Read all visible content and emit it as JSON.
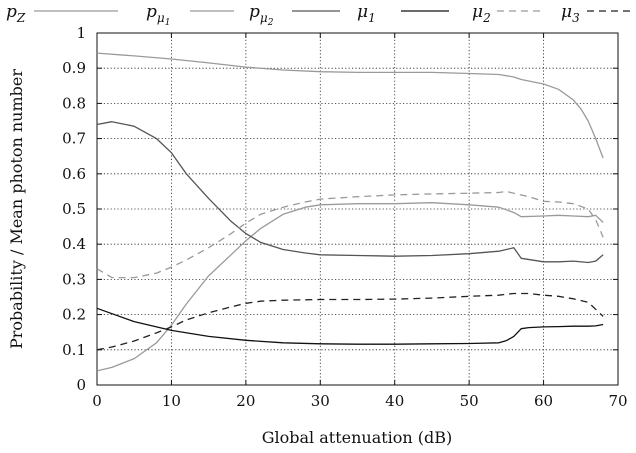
{
  "chart_data": {
    "type": "line",
    "xlabel": "Global attenuation (dB)",
    "ylabel": "Probability / Mean photon number",
    "xlim": [
      0,
      70
    ],
    "ylim": [
      0,
      1
    ],
    "xticks": [
      "0",
      "10",
      "20",
      "30",
      "40",
      "50",
      "60",
      "70"
    ],
    "yticks": [
      "0",
      "0.1",
      "0.2",
      "0.3",
      "0.4",
      "0.5",
      "0.6",
      "0.7",
      "0.8",
      "0.9",
      "1"
    ],
    "grid": true,
    "legend_position": "top",
    "series": [
      {
        "name": "p",
        "sub": "Z",
        "subsub": "",
        "color": "#9a9a9a",
        "dash": "",
        "x": [
          0,
          5,
          10,
          15,
          20,
          25,
          30,
          35,
          40,
          45,
          50,
          54,
          56,
          57,
          60,
          62,
          64,
          65,
          66,
          67,
          68
        ],
        "y": [
          0.943,
          0.935,
          0.926,
          0.915,
          0.903,
          0.895,
          0.89,
          0.888,
          0.888,
          0.888,
          0.885,
          0.882,
          0.875,
          0.868,
          0.855,
          0.84,
          0.81,
          0.785,
          0.75,
          0.7,
          0.645
        ]
      },
      {
        "name": "p",
        "sub": "μ",
        "subsub": "1",
        "color": "#9a9a9a",
        "dash": "",
        "x": [
          0,
          2,
          5,
          8,
          10,
          12,
          15,
          18,
          20,
          22,
          25,
          28,
          30,
          35,
          40,
          45,
          50,
          54,
          56,
          57,
          60,
          62,
          64,
          66,
          67,
          68
        ],
        "y": [
          0.04,
          0.05,
          0.075,
          0.12,
          0.17,
          0.23,
          0.31,
          0.37,
          0.41,
          0.445,
          0.485,
          0.505,
          0.512,
          0.515,
          0.515,
          0.518,
          0.512,
          0.505,
          0.49,
          0.478,
          0.48,
          0.482,
          0.48,
          0.478,
          0.482,
          0.462
        ]
      },
      {
        "name": "p",
        "sub": "μ",
        "subsub": "2",
        "color": "#555555",
        "dash": "",
        "x": [
          0,
          2,
          5,
          8,
          10,
          12,
          15,
          18,
          20,
          22,
          25,
          28,
          30,
          35,
          40,
          45,
          50,
          54,
          55,
          56,
          57,
          60,
          62,
          64,
          66,
          67,
          68
        ],
        "y": [
          0.74,
          0.748,
          0.735,
          0.7,
          0.66,
          0.6,
          0.53,
          0.465,
          0.43,
          0.405,
          0.385,
          0.375,
          0.37,
          0.368,
          0.366,
          0.368,
          0.373,
          0.38,
          0.385,
          0.39,
          0.36,
          0.35,
          0.35,
          0.352,
          0.348,
          0.352,
          0.37
        ]
      },
      {
        "name": "μ",
        "sub": "1",
        "subsub": "",
        "color": "#111111",
        "dash": "",
        "x": [
          0,
          5,
          10,
          15,
          20,
          25,
          30,
          35,
          40,
          45,
          50,
          54,
          55,
          56,
          57,
          58,
          60,
          62,
          64,
          66,
          67,
          68
        ],
        "y": [
          0.218,
          0.18,
          0.155,
          0.138,
          0.127,
          0.12,
          0.117,
          0.116,
          0.116,
          0.117,
          0.118,
          0.12,
          0.126,
          0.138,
          0.16,
          0.163,
          0.165,
          0.166,
          0.167,
          0.167,
          0.168,
          0.172
        ]
      },
      {
        "name": "μ",
        "sub": "2",
        "subsub": "",
        "color": "#9a9a9a",
        "dash": "7 5",
        "x": [
          0,
          2,
          5,
          8,
          10,
          12,
          15,
          18,
          20,
          22,
          25,
          28,
          30,
          35,
          40,
          45,
          50,
          54,
          55,
          56,
          58,
          60,
          62,
          64,
          66,
          67,
          68
        ],
        "y": [
          0.33,
          0.305,
          0.305,
          0.318,
          0.335,
          0.355,
          0.39,
          0.43,
          0.46,
          0.485,
          0.505,
          0.52,
          0.528,
          0.535,
          0.54,
          0.543,
          0.545,
          0.547,
          0.55,
          0.545,
          0.535,
          0.522,
          0.52,
          0.515,
          0.5,
          0.47,
          0.42
        ]
      },
      {
        "name": "μ",
        "sub": "3",
        "subsub": "",
        "color": "#222222",
        "dash": "7 5",
        "x": [
          0,
          2,
          5,
          8,
          10,
          12,
          15,
          18,
          20,
          22,
          25,
          28,
          30,
          35,
          40,
          45,
          50,
          54,
          55,
          56,
          58,
          60,
          62,
          64,
          66,
          67,
          68
        ],
        "y": [
          0.1,
          0.108,
          0.125,
          0.148,
          0.165,
          0.185,
          0.205,
          0.222,
          0.232,
          0.238,
          0.241,
          0.242,
          0.243,
          0.243,
          0.244,
          0.247,
          0.252,
          0.255,
          0.258,
          0.26,
          0.26,
          0.255,
          0.252,
          0.245,
          0.235,
          0.215,
          0.195
        ]
      }
    ]
  }
}
